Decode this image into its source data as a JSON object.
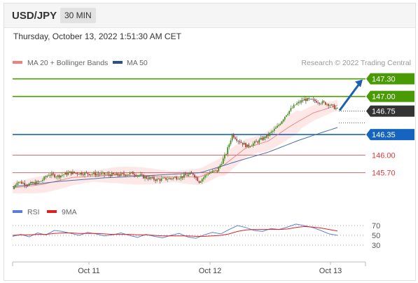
{
  "header": {
    "symbol": "USD/JPY",
    "interval": "30 MIN"
  },
  "datetime": "Thursday, October 13, 2022 1:51:30 AM CET",
  "legend": {
    "ma20": "MA 20 + Bollinger Bands",
    "ma50": "MA 50",
    "credit": "Research © 2022 Trading Central",
    "rsi": "RSI",
    "ma9": "9MA"
  },
  "colors": {
    "green": "#4a9a06",
    "blue": "#1565c0",
    "red": "#e03a3a",
    "dark": "#333333",
    "band": "#fbd3d3",
    "ma20": "#f08080",
    "ma50": "#4a6fa5",
    "rsi": "#5b7fd6",
    "ma9": "#e02020"
  },
  "chart_data": [
    {
      "type": "candlestick",
      "title": "USD/JPY",
      "ylim": [
        145.3,
        147.45
      ],
      "x_labels": [
        "Oct 11",
        "Oct 12",
        "Oct 13"
      ],
      "current_price": 146.75,
      "levels": [
        {
          "label": "147.30",
          "value": 147.3,
          "kind": "target",
          "color": "#4a9a06"
        },
        {
          "label": "147.00",
          "value": 147.0,
          "kind": "resistance",
          "color": "#4a9a06"
        },
        {
          "label": "146.75",
          "value": 146.75,
          "kind": "last",
          "color": "#333333"
        },
        {
          "label": "146.35",
          "value": 146.35,
          "kind": "pivot",
          "color": "#1565c0"
        },
        {
          "label": "146.00",
          "value": 146.0,
          "kind": "support",
          "color": "#e03a3a"
        },
        {
          "label": "145.70",
          "value": 145.7,
          "kind": "support",
          "color": "#e03a3a"
        }
      ],
      "close_path": [
        [
          0,
          145.42
        ],
        [
          3,
          145.55
        ],
        [
          10,
          145.5
        ],
        [
          18,
          145.54
        ],
        [
          24,
          145.67
        ],
        [
          30,
          145.64
        ],
        [
          38,
          145.7
        ],
        [
          46,
          145.69
        ],
        [
          54,
          145.68
        ],
        [
          62,
          145.67
        ],
        [
          70,
          145.66
        ],
        [
          80,
          145.69
        ],
        [
          88,
          145.62
        ],
        [
          96,
          145.58
        ],
        [
          104,
          145.6
        ],
        [
          112,
          145.63
        ],
        [
          120,
          145.68
        ],
        [
          124,
          145.55
        ],
        [
          130,
          145.69
        ],
        [
          136,
          145.73
        ],
        [
          142,
          146.03
        ],
        [
          146,
          146.35
        ],
        [
          150,
          146.25
        ],
        [
          156,
          146.15
        ],
        [
          162,
          146.22
        ],
        [
          170,
          146.34
        ],
        [
          176,
          146.48
        ],
        [
          182,
          146.7
        ],
        [
          188,
          146.86
        ],
        [
          194,
          146.95
        ],
        [
          202,
          146.92
        ],
        [
          210,
          146.87
        ],
        [
          216,
          146.78
        ]
      ],
      "ma20_path": [
        [
          0,
          145.44
        ],
        [
          20,
          145.5
        ],
        [
          40,
          145.62
        ],
        [
          70,
          145.66
        ],
        [
          100,
          145.63
        ],
        [
          125,
          145.63
        ],
        [
          140,
          145.82
        ],
        [
          155,
          146.12
        ],
        [
          170,
          146.24
        ],
        [
          185,
          146.5
        ],
        [
          200,
          146.72
        ],
        [
          216,
          146.85
        ]
      ],
      "ma50_path": [
        [
          0,
          145.46
        ],
        [
          30,
          145.55
        ],
        [
          60,
          145.61
        ],
        [
          90,
          145.65
        ],
        [
          125,
          145.7
        ],
        [
          150,
          145.9
        ],
        [
          170,
          146.05
        ],
        [
          190,
          146.25
        ],
        [
          205,
          146.38
        ],
        [
          216,
          146.47
        ]
      ]
    },
    {
      "type": "line",
      "title": "RSI",
      "ylim": [
        20,
        80
      ],
      "yticks": [
        70,
        50,
        30
      ],
      "series": [
        {
          "name": "RSI",
          "values": [
            48,
            52,
            47,
            55,
            51,
            60,
            58,
            54,
            50,
            56,
            53,
            49,
            51,
            55,
            50,
            46,
            52,
            48,
            45,
            50,
            54,
            47,
            44,
            51,
            56,
            53,
            62,
            70,
            66,
            60,
            58,
            64,
            62,
            67,
            73,
            70,
            66,
            60,
            53,
            50
          ]
        },
        {
          "name": "9MA",
          "values": [
            50,
            51,
            51,
            52,
            52,
            54,
            55,
            55,
            54,
            54,
            54,
            53,
            52,
            52,
            52,
            51,
            51,
            50,
            49,
            49,
            49,
            49,
            48,
            48,
            49,
            50,
            53,
            58,
            61,
            62,
            62,
            62,
            62,
            63,
            66,
            68,
            67,
            65,
            62,
            59
          ]
        }
      ]
    }
  ]
}
